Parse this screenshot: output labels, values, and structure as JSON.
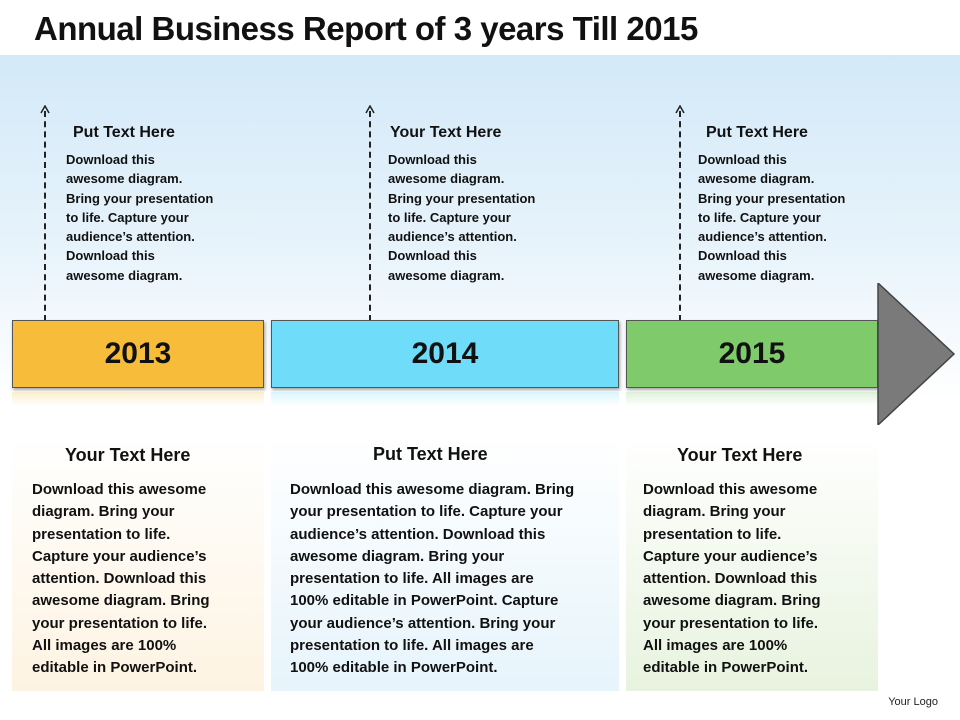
{
  "title": "Annual Business Report of 3 years Till 2015",
  "columns": [
    {
      "year": "2013",
      "color": "#f7bc3a",
      "top_heading": "Put Text Here",
      "top_lines": [
        "Download this",
        "awesome diagram.",
        "Bring your presentation",
        "to life. Capture your",
        "audience’s attention.",
        "Download this",
        "awesome diagram."
      ],
      "bottom_heading": "Your Text Here",
      "bottom_lines": [
        "Download this awesome",
        "diagram. Bring your",
        "presentation to life.",
        "Capture your audience’s",
        "attention.  Download this",
        "awesome diagram. Bring",
        "your presentation to life.",
        "All images are 100%",
        "editable in PowerPoint."
      ]
    },
    {
      "year": "2014",
      "color": "#6fdcfa",
      "top_heading": "Your Text Here",
      "top_lines": [
        "Download this",
        "awesome diagram.",
        "Bring your presentation",
        "to life. Capture your",
        "audience’s attention.",
        "Download this",
        "awesome diagram."
      ],
      "bottom_heading": "Put Text Here",
      "bottom_lines": [
        "Download this awesome diagram. Bring",
        "your presentation to life. Capture your",
        "audience’s attention.  Download this",
        "awesome diagram. Bring your",
        "presentation to life. All images are",
        "100% editable in PowerPoint. Capture",
        "your audience’s attention. Bring your",
        "presentation to life. All images are",
        "100% editable in PowerPoint."
      ]
    },
    {
      "year": "2015",
      "color": "#7fca6a",
      "top_heading": "Put Text Here",
      "top_lines": [
        "Download this",
        "awesome diagram.",
        "Bring your presentation",
        "to life. Capture your",
        "audience’s attention.",
        "Download this",
        "awesome diagram."
      ],
      "bottom_heading": "Your Text Here",
      "bottom_lines": [
        "Download this awesome",
        "diagram. Bring your",
        "presentation to life.",
        "Capture your audience’s",
        "attention.  Download this",
        "awesome diagram. Bring",
        "your presentation to life.",
        "All images are 100%",
        "editable in PowerPoint."
      ]
    }
  ],
  "arrow_color": "#7a7a7a",
  "logo": "Your Logo"
}
